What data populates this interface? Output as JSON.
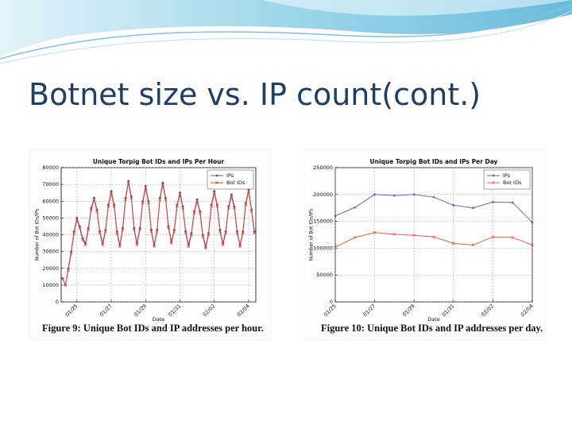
{
  "title": "Botnet size vs. IP count(cont.)",
  "chart_data": [
    {
      "type": "line",
      "title": "Unique Torpig Bot IDs and IPs Per Hour",
      "caption": "Figure 9:  Unique Bot IDs and IP addresses per hour.",
      "xlabel": "Date",
      "ylabel": "Number of Bot IDs/IPs",
      "x": [
        -20,
        -16,
        -12,
        -8,
        -4,
        0,
        4,
        8,
        12,
        16,
        20,
        24,
        28,
        32,
        36,
        40,
        44,
        48,
        52,
        56,
        60,
        64,
        68,
        72,
        76,
        80,
        84,
        88,
        92,
        96,
        100,
        104,
        108,
        112,
        116,
        120,
        124,
        128,
        132,
        136,
        140,
        144,
        148,
        152,
        156,
        160,
        164,
        168,
        172,
        176,
        180,
        184,
        188,
        192,
        196,
        200,
        204,
        208,
        212,
        216,
        220,
        224,
        228,
        232,
        236,
        240,
        244,
        248
      ],
      "series": [
        {
          "name": "IPs",
          "color": "#4a5f8c",
          "marker": "dot",
          "values": [
            14000,
            10000,
            20000,
            30000,
            42000,
            50000,
            45000,
            38000,
            35000,
            44000,
            56000,
            62000,
            55000,
            42000,
            35000,
            43000,
            58000,
            66000,
            58000,
            42000,
            34000,
            44000,
            62000,
            72000,
            63000,
            44000,
            35000,
            44000,
            60000,
            69000,
            60000,
            43000,
            34000,
            43000,
            62000,
            71000,
            62000,
            45000,
            36000,
            43000,
            58000,
            65000,
            57000,
            42000,
            34000,
            41000,
            54000,
            61000,
            54000,
            40000,
            33000,
            41000,
            58000,
            66000,
            58000,
            43000,
            35000,
            42000,
            57000,
            64000,
            57000,
            42000,
            34000,
            42000,
            59000,
            67000,
            55000,
            42000
          ]
        },
        {
          "name": "Bot IDs",
          "color": "#d9483b",
          "marker": "x",
          "values": [
            14000,
            10000,
            19000,
            29000,
            41000,
            49000,
            44000,
            37000,
            34000,
            43000,
            55000,
            61000,
            54000,
            41000,
            34000,
            42000,
            57000,
            65000,
            57000,
            41000,
            33000,
            43000,
            61000,
            71000,
            62000,
            43000,
            34000,
            43000,
            59000,
            68000,
            59000,
            42000,
            33000,
            42000,
            61000,
            70000,
            61000,
            44000,
            35000,
            42000,
            57000,
            64000,
            56000,
            41000,
            33000,
            40000,
            53000,
            60000,
            53000,
            39000,
            32000,
            40000,
            57000,
            65000,
            57000,
            42000,
            34000,
            41000,
            56000,
            63000,
            56000,
            41000,
            33000,
            41000,
            58000,
            66000,
            54000,
            41000
          ]
        }
      ],
      "xlim": [
        -22,
        250
      ],
      "xticks": [
        {
          "value": 0,
          "label": "01/25"
        },
        {
          "value": 48,
          "label": "01/27"
        },
        {
          "value": 96,
          "label": "01/29"
        },
        {
          "value": 144,
          "label": "01/31"
        },
        {
          "value": 192,
          "label": "02/02"
        },
        {
          "value": 240,
          "label": "02/04"
        }
      ],
      "ylim": [
        0,
        80000
      ],
      "yticks": [
        0,
        10000,
        20000,
        30000,
        40000,
        50000,
        60000,
        70000,
        80000
      ],
      "grid": true,
      "legend": "upper right"
    },
    {
      "type": "line",
      "title": "Unique Torpig Bot IDs and IPs Per Day",
      "caption": "Figure 10:  Unique Bot IDs and IP addresses per day.",
      "xlabel": "Date",
      "ylabel": "Number of Bot IDs/IPs",
      "x": [
        0,
        1,
        2,
        3,
        4,
        5,
        6,
        7,
        8,
        9,
        10
      ],
      "series": [
        {
          "name": "IPs",
          "color": "#5470a8",
          "marker": "dot",
          "values": [
            160000,
            176000,
            200000,
            198000,
            200000,
            195000,
            180000,
            175000,
            186000,
            185000,
            148000
          ]
        },
        {
          "name": "Bot IDs",
          "color": "#e8604c",
          "marker": "x",
          "values": [
            102000,
            120000,
            129000,
            126000,
            124000,
            121000,
            109000,
            106000,
            121000,
            120000,
            106000
          ]
        }
      ],
      "xlim": [
        0,
        10
      ],
      "xticks": [
        {
          "value": 0,
          "label": "01/25"
        },
        {
          "value": 2,
          "label": "01/27"
        },
        {
          "value": 4,
          "label": "01/29"
        },
        {
          "value": 6,
          "label": "01/31"
        },
        {
          "value": 8,
          "label": "02/02"
        },
        {
          "value": 10,
          "label": "02/04"
        }
      ],
      "ylim": [
        0,
        250000
      ],
      "yticks": [
        0,
        50000,
        100000,
        150000,
        200000,
        250000
      ],
      "grid": true,
      "legend": "upper right"
    }
  ]
}
